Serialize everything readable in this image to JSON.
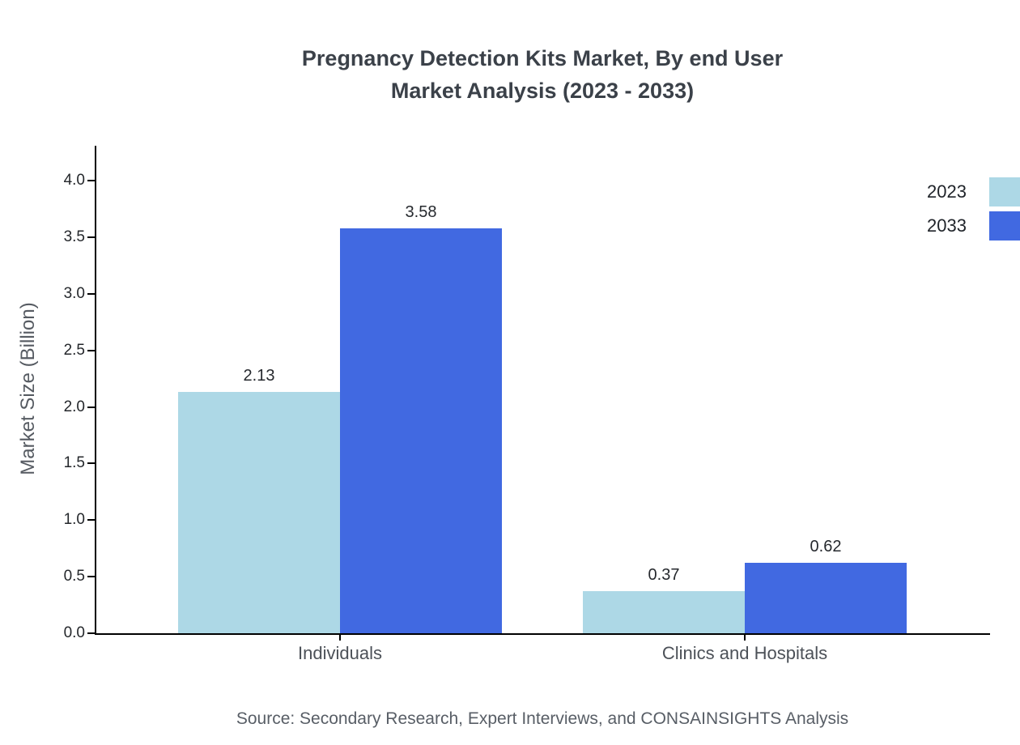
{
  "title": {
    "line1": "Pregnancy Detection Kits Market, By end User",
    "line2": "Market Analysis (2023 - 2033)"
  },
  "chart_data": {
    "type": "bar",
    "categories": [
      "Individuals",
      "Clinics and Hospitals"
    ],
    "series": [
      {
        "name": "2023",
        "color": "#add8e6",
        "values": [
          2.13,
          0.37
        ]
      },
      {
        "name": "2033",
        "color": "#4169e1",
        "values": [
          3.58,
          0.62
        ]
      }
    ],
    "title": "Pregnancy Detection Kits Market, By end User Market Analysis (2023 - 2033)",
    "xlabel": "",
    "ylabel": "Market Size (Billion)",
    "ylim": [
      0,
      4.0
    ],
    "yticks": [
      0.0,
      0.5,
      1.0,
      1.5,
      2.0,
      2.5,
      3.0,
      3.5,
      4.0
    ],
    "grid": false,
    "legend_position": "top-right",
    "value_labels": true
  },
  "source": "Source: Secondary Research, Expert Interviews, and CONSAINSIGHTS Analysis"
}
